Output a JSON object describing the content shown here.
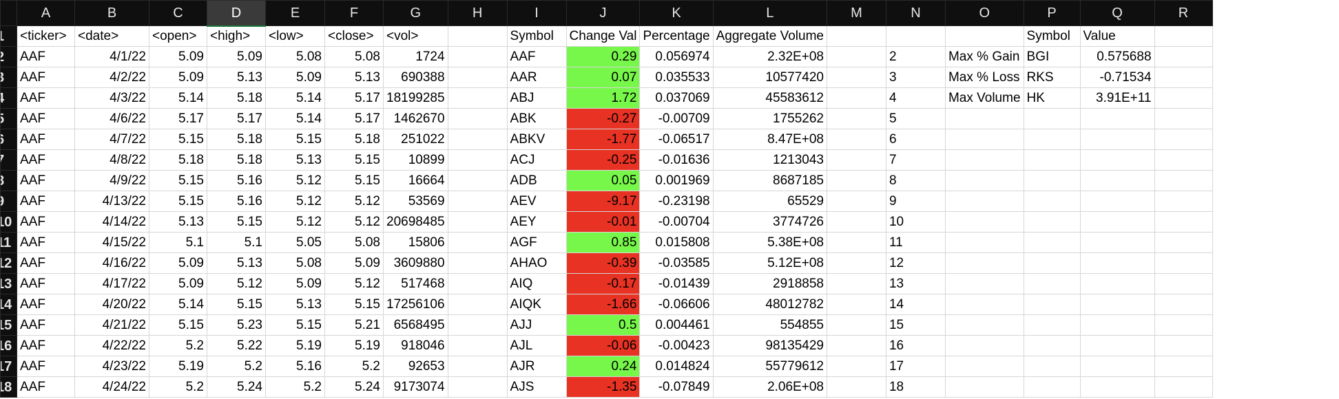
{
  "columns": [
    "A",
    "B",
    "C",
    "D",
    "E",
    "F",
    "G",
    "H",
    "I",
    "J",
    "K",
    "L",
    "M",
    "N",
    "O",
    "P",
    "Q",
    "R"
  ],
  "selected_column": "D",
  "colors": {
    "positive": "#77f74a",
    "negative": "#e83223",
    "header_bg": "#0f0f0f"
  },
  "header_row": [
    "<ticker>",
    "<date>",
    "<open>",
    "<high>",
    "<low>",
    "<close>",
    "<vol>",
    "",
    "Symbol",
    "Change Val",
    "Percentage",
    "Aggregate Volume",
    "",
    "",
    "",
    "Symbol",
    "Value",
    ""
  ],
  "rows": [
    {
      "n": "2",
      "a": "AAF",
      "b": "4/1/22",
      "c": "5.09",
      "d": "5.09",
      "e": "5.08",
      "f": "5.08",
      "g": "1724",
      "i": "AAF",
      "j": "0.29",
      "k": "0.056974",
      "l": "2.32E+08",
      "o": "Max % Gain",
      "p": "BGI",
      "q": "0.575688"
    },
    {
      "n": "3",
      "a": "AAF",
      "b": "4/2/22",
      "c": "5.09",
      "d": "5.13",
      "e": "5.09",
      "f": "5.13",
      "g": "690388",
      "i": "AAR",
      "j": "0.07",
      "k": "0.035533",
      "l": "10577420",
      "o": "Max % Loss",
      "p": "RKS",
      "q": "-0.71534"
    },
    {
      "n": "4",
      "a": "AAF",
      "b": "4/3/22",
      "c": "5.14",
      "d": "5.18",
      "e": "5.14",
      "f": "5.17",
      "g": "18199285",
      "i": "ABJ",
      "j": "1.72",
      "k": "0.037069",
      "l": "45583612",
      "o": "Max Volume",
      "p": "HK",
      "q": "3.91E+11"
    },
    {
      "n": "5",
      "a": "AAF",
      "b": "4/6/22",
      "c": "5.17",
      "d": "5.17",
      "e": "5.14",
      "f": "5.17",
      "g": "1462670",
      "i": "ABK",
      "j": "-0.27",
      "k": "-0.00709",
      "l": "1755262",
      "o": "",
      "p": "",
      "q": ""
    },
    {
      "n": "6",
      "a": "AAF",
      "b": "4/7/22",
      "c": "5.15",
      "d": "5.18",
      "e": "5.15",
      "f": "5.18",
      "g": "251022",
      "i": "ABKV",
      "j": "-1.77",
      "k": "-0.06517",
      "l": "8.47E+08",
      "o": "",
      "p": "",
      "q": ""
    },
    {
      "n": "7",
      "a": "AAF",
      "b": "4/8/22",
      "c": "5.18",
      "d": "5.18",
      "e": "5.13",
      "f": "5.15",
      "g": "10899",
      "i": "ACJ",
      "j": "-0.25",
      "k": "-0.01636",
      "l": "1213043",
      "o": "",
      "p": "",
      "q": ""
    },
    {
      "n": "8",
      "a": "AAF",
      "b": "4/9/22",
      "c": "5.15",
      "d": "5.16",
      "e": "5.12",
      "f": "5.15",
      "g": "16664",
      "i": "ADB",
      "j": "0.05",
      "k": "0.001969",
      "l": "8687185",
      "o": "",
      "p": "",
      "q": ""
    },
    {
      "n": "9",
      "a": "AAF",
      "b": "4/13/22",
      "c": "5.15",
      "d": "5.16",
      "e": "5.12",
      "f": "5.12",
      "g": "53569",
      "i": "AEV",
      "j": "-9.17",
      "k": "-0.23198",
      "l": "65529",
      "o": "",
      "p": "",
      "q": ""
    },
    {
      "n": "10",
      "a": "AAF",
      "b": "4/14/22",
      "c": "5.13",
      "d": "5.15",
      "e": "5.12",
      "f": "5.12",
      "g": "20698485",
      "i": "AEY",
      "j": "-0.01",
      "k": "-0.00704",
      "l": "3774726",
      "o": "",
      "p": "",
      "q": ""
    },
    {
      "n": "11",
      "a": "AAF",
      "b": "4/15/22",
      "c": "5.1",
      "d": "5.1",
      "e": "5.05",
      "f": "5.08",
      "g": "15806",
      "i": "AGF",
      "j": "0.85",
      "k": "0.015808",
      "l": "5.38E+08",
      "o": "",
      "p": "",
      "q": ""
    },
    {
      "n": "12",
      "a": "AAF",
      "b": "4/16/22",
      "c": "5.09",
      "d": "5.13",
      "e": "5.08",
      "f": "5.09",
      "g": "3609880",
      "i": "AHAO",
      "j": "-0.39",
      "k": "-0.03585",
      "l": "5.12E+08",
      "o": "",
      "p": "",
      "q": ""
    },
    {
      "n": "13",
      "a": "AAF",
      "b": "4/17/22",
      "c": "5.09",
      "d": "5.12",
      "e": "5.09",
      "f": "5.12",
      "g": "517468",
      "i": "AIQ",
      "j": "-0.17",
      "k": "-0.01439",
      "l": "2918858",
      "o": "",
      "p": "",
      "q": ""
    },
    {
      "n": "14",
      "a": "AAF",
      "b": "4/20/22",
      "c": "5.14",
      "d": "5.15",
      "e": "5.13",
      "f": "5.15",
      "g": "17256106",
      "i": "AIQK",
      "j": "-1.66",
      "k": "-0.06606",
      "l": "48012782",
      "o": "",
      "p": "",
      "q": ""
    },
    {
      "n": "15",
      "a": "AAF",
      "b": "4/21/22",
      "c": "5.15",
      "d": "5.23",
      "e": "5.15",
      "f": "5.21",
      "g": "6568495",
      "i": "AJJ",
      "j": "0.5",
      "k": "0.004461",
      "l": "554855",
      "o": "",
      "p": "",
      "q": ""
    },
    {
      "n": "16",
      "a": "AAF",
      "b": "4/22/22",
      "c": "5.2",
      "d": "5.22",
      "e": "5.19",
      "f": "5.19",
      "g": "918046",
      "i": "AJL",
      "j": "-0.06",
      "k": "-0.00423",
      "l": "98135429",
      "o": "",
      "p": "",
      "q": ""
    },
    {
      "n": "17",
      "a": "AAF",
      "b": "4/23/22",
      "c": "5.19",
      "d": "5.2",
      "e": "5.16",
      "f": "5.2",
      "g": "92653",
      "i": "AJR",
      "j": "0.24",
      "k": "0.014824",
      "l": "55779612",
      "o": "",
      "p": "",
      "q": ""
    },
    {
      "n": "18",
      "a": "AAF",
      "b": "4/24/22",
      "c": "5.2",
      "d": "5.24",
      "e": "5.2",
      "f": "5.24",
      "g": "9173074",
      "i": "AJS",
      "j": "-1.35",
      "k": "-0.07849",
      "l": "2.06E+08",
      "o": "",
      "p": "",
      "q": ""
    }
  ]
}
